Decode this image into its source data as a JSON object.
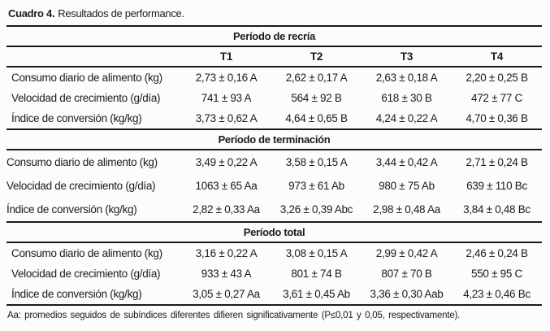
{
  "title": {
    "label": "Cuadro 4.",
    "text": "Resultados de performance."
  },
  "columns": [
    "T1",
    "T2",
    "T3",
    "T4"
  ],
  "sections": [
    {
      "header": "Período de recría",
      "rows": [
        {
          "label": "Consumo diario de alimento (kg)",
          "values": [
            "2,73 ± 0,16 A",
            "2,62 ± 0,17 A",
            "2,63 ± 0,18 A",
            "2,20 ± 0,25 B"
          ]
        },
        {
          "label": "Velocidad de crecimiento (g/día)",
          "values": [
            "741 ± 93 A",
            "564 ± 92 B",
            "618 ± 30 B",
            "472 ± 77 C"
          ]
        },
        {
          "label": "Índice de conversión (kg/kg)",
          "values": [
            "3,73 ± 0,62 A",
            "4,64 ± 0,65 B",
            "4,24 ± 0,22 A",
            "4,70 ± 0,36 B"
          ]
        }
      ]
    },
    {
      "header": "Período de terminación",
      "rows": [
        {
          "label": "Consumo diario de alimento (kg)",
          "values": [
            "3,49 ± 0,22 A",
            "3,58 ± 0,15 A",
            "3,44 ± 0,42 A",
            "2,71 ± 0,24 B"
          ]
        },
        {
          "label": "Velocidad de crecimiento (g/día)",
          "values": [
            "1063 ± 65 Aa",
            "973 ± 61 Ab",
            "980 ± 75 Ab",
            "639 ± 110 Bc"
          ]
        },
        {
          "label": "Índice de conversión (kg/kg)",
          "values": [
            "2,82 ± 0,33 Aa",
            "3,26 ± 0,39 Abc",
            "2,98 ± 0,48 Aa",
            "3,84 ± 0,48 Bc"
          ]
        }
      ]
    },
    {
      "header": "Período total",
      "rows": [
        {
          "label": "Consumo diario de alimento (kg)",
          "values": [
            "3,16 ± 0,22 A",
            "3,08 ± 0,15 A",
            "2,99 ± 0,42 A",
            "2,46 ± 0,24 B"
          ]
        },
        {
          "label": "Velocidad de crecimiento (g/día)",
          "values": [
            "933 ± 43 A",
            "801 ± 74 B",
            "807 ± 70 B",
            "550 ± 95 C"
          ]
        },
        {
          "label": "Índice de conversión (kg/kg)",
          "values": [
            "3,05 ± 0,27 Aa",
            "3,61 ± 0,45 Ab",
            "3,36 ± 0,30 Aab",
            "4,23 ± 0,46 Bc"
          ]
        }
      ]
    }
  ],
  "footnote": "Aa: promedios seguidos de subíndices diferentes difieren significativamente (P≤0,01 y 0,05, respectivamente).",
  "colors": {
    "text": "#1b1b1b",
    "rule": "#1a1a1a",
    "background": "#fcfcfc"
  }
}
